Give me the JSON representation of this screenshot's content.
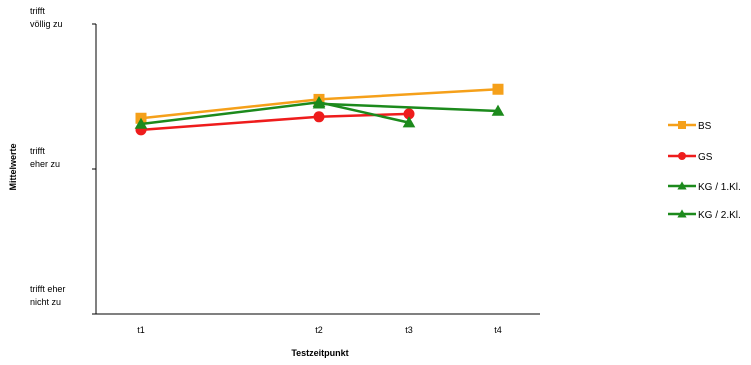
{
  "chart_data": {
    "type": "line",
    "title": "",
    "xlabel": "Testzeitpunkt",
    "ylabel": "Mittelwerte",
    "categories": [
      "t1",
      "t2",
      "t3",
      "t4"
    ],
    "ylim": [
      1,
      3
    ],
    "y_ticks": [
      {
        "value": 1,
        "label_lines": [
          "trifft eher",
          "nicht zu"
        ]
      },
      {
        "value": 2,
        "label_lines": [
          "trifft",
          "eher zu"
        ]
      },
      {
        "value": 3,
        "label_lines": [
          "trifft",
          "völlig zu"
        ]
      }
    ],
    "grid": false,
    "legend_position": "right",
    "series": [
      {
        "name": "BS",
        "color": "#F5A01A",
        "marker": "square",
        "values": [
          2.35,
          2.48,
          null,
          2.55
        ]
      },
      {
        "name": "GS",
        "color": "#EE1C1C",
        "marker": "circle",
        "values": [
          2.27,
          2.36,
          2.38,
          null
        ]
      },
      {
        "name": "KG / 1.Kl.",
        "color": "#1C8A1C",
        "marker": "triangle",
        "values": [
          2.31,
          2.46,
          2.32,
          null
        ]
      },
      {
        "name": "KG / 2.Kl.",
        "color": "#1C8A1C",
        "marker": "triangle",
        "values": [
          null,
          2.45,
          null,
          2.4
        ]
      }
    ]
  }
}
